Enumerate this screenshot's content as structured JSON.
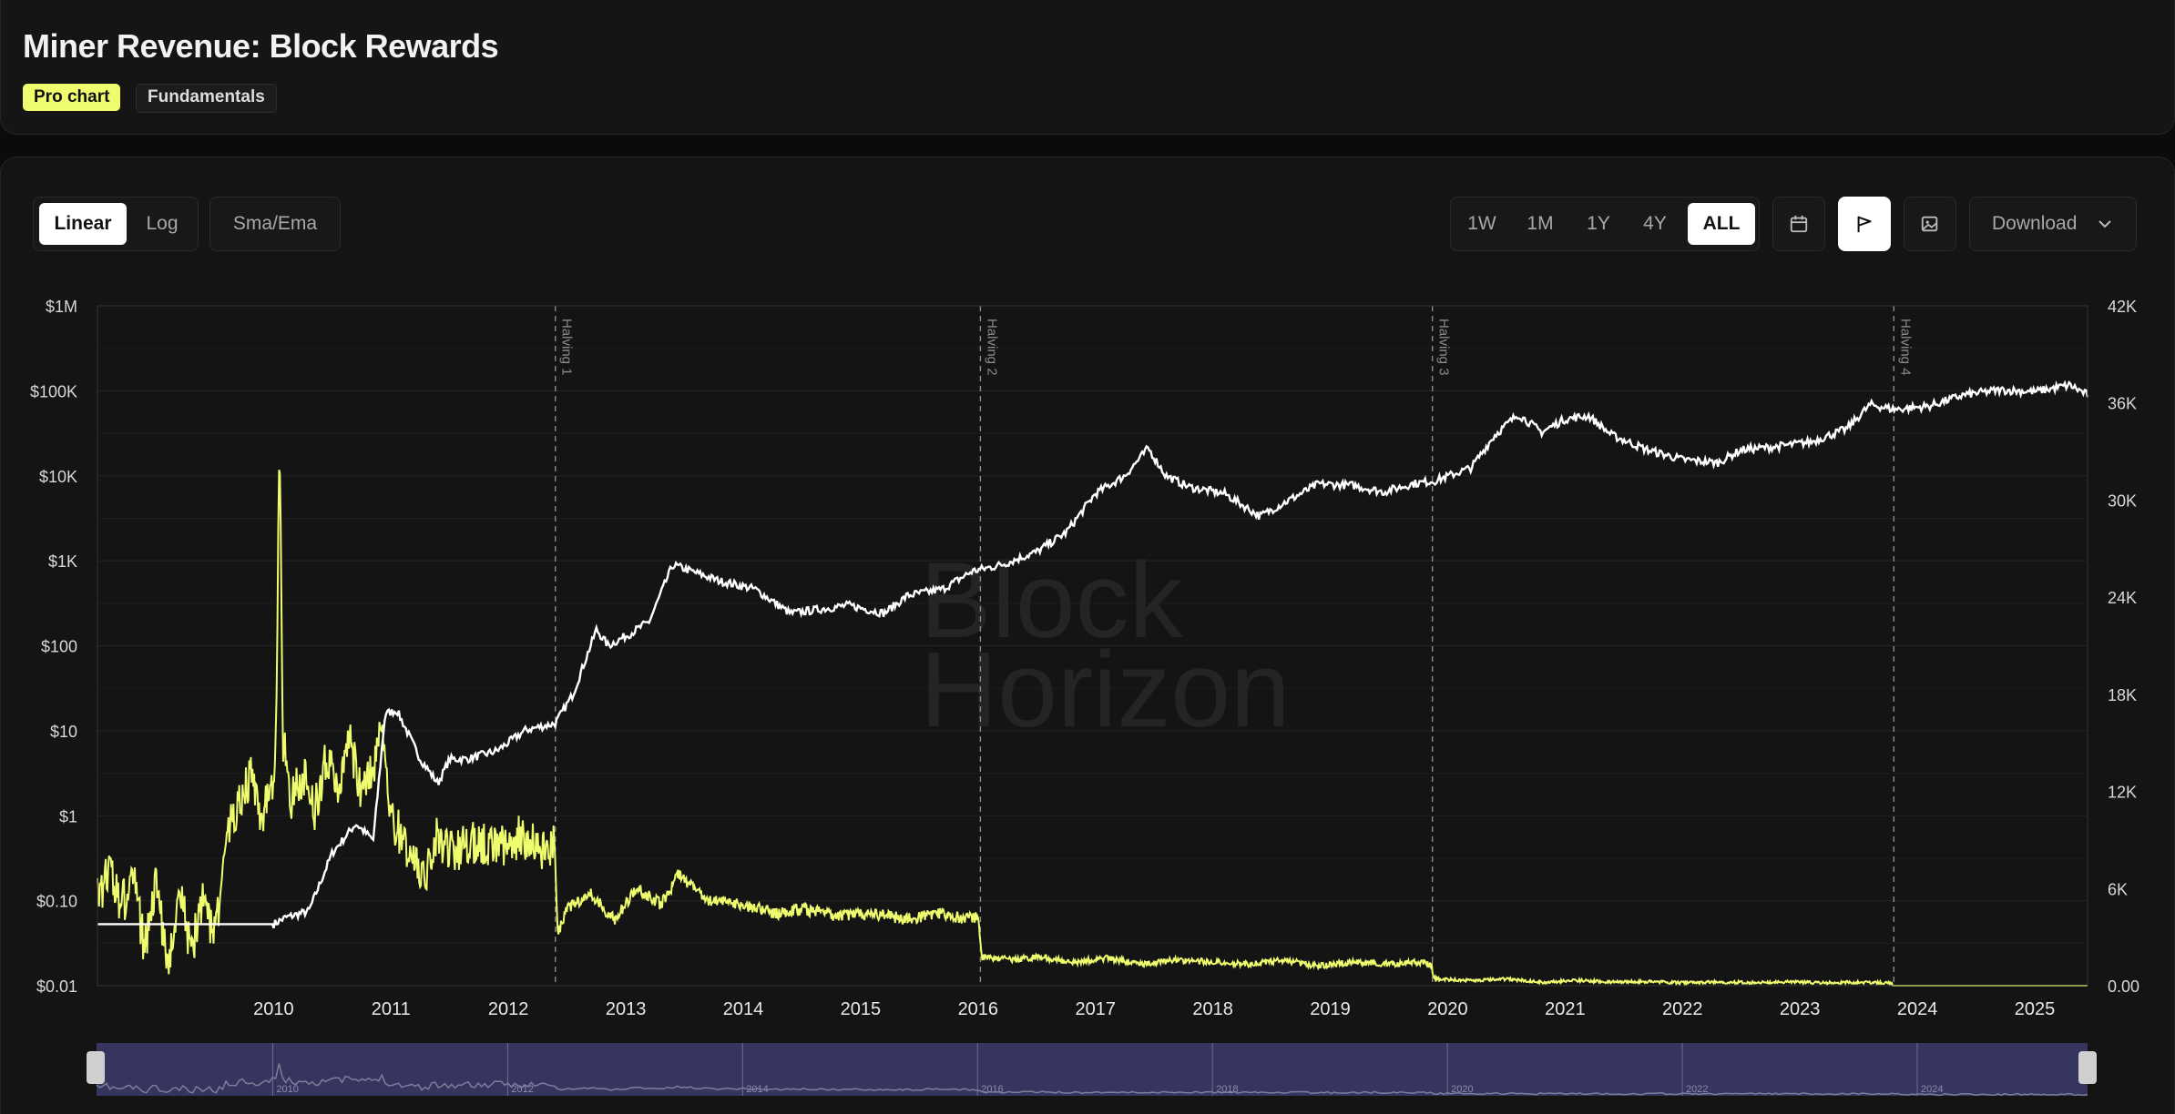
{
  "header": {
    "title": "Miner Revenue: Block Rewards",
    "tags": [
      "Pro chart",
      "Fundamentals"
    ]
  },
  "toolbar": {
    "scale_buttons": [
      "Linear",
      "Log"
    ],
    "active_scale": "Linear",
    "sma_label": "Sma/Ema",
    "range_buttons": [
      "1W",
      "1M",
      "1Y",
      "4Y",
      "ALL"
    ],
    "active_range": "ALL",
    "download_label": "Download",
    "icons": [
      "calendar-icon",
      "flag-icon",
      "image-icon",
      "chevron-down-icon"
    ]
  },
  "watermark": {
    "line1": "Block",
    "line2": "Horizon"
  },
  "colors": {
    "revenue": "#eefc6e",
    "block_count": "#ffffff",
    "background": "#141414",
    "navigator": "#3a3a6a"
  },
  "chart_data": {
    "type": "line",
    "x_range": [
      2009.0,
      2025.95
    ],
    "x_ticks": [
      "2010",
      "2011",
      "2012",
      "2013",
      "2014",
      "2015",
      "2016",
      "2017",
      "2018",
      "2019",
      "2020",
      "2021",
      "2022",
      "2023",
      "2024",
      "2025"
    ],
    "y_left": {
      "scale": "log",
      "ticks": [
        "$1M",
        "$100K",
        "$10K",
        "$1K",
        "$100",
        "$10",
        "$1",
        "$0.10",
        "$0.01"
      ],
      "range": [
        0.01,
        1000000
      ]
    },
    "y_right": {
      "scale": "linear",
      "ticks": [
        "42K",
        "36K",
        "30K",
        "24K",
        "18K",
        "12K",
        "6K",
        "0.00"
      ],
      "range": [
        0,
        42000
      ]
    },
    "annotations": [
      {
        "label": "Halving 1",
        "x": 2012.9
      },
      {
        "label": "Halving 2",
        "x": 2016.52
      },
      {
        "label": "Halving 3",
        "x": 2020.37
      },
      {
        "label": "Halving 4",
        "x": 2024.3
      }
    ],
    "series": [
      {
        "axis": "left",
        "x": [
          2009.0,
          2009.1,
          2009.2,
          2009.3,
          2009.4,
          2009.5,
          2009.6,
          2009.7,
          2009.8,
          2009.9,
          2010.0,
          2010.1,
          2010.2,
          2010.3,
          2010.4,
          2010.5,
          2010.52,
          2010.55,
          2010.58,
          2010.65,
          2010.75,
          2010.85,
          2010.95,
          2011.05,
          2011.15,
          2011.25,
          2011.35,
          2011.42,
          2011.5,
          2011.6,
          2011.7,
          2011.8,
          2011.9,
          2012.0,
          2012.2,
          2012.4,
          2012.6,
          2012.8,
          2012.89,
          2012.92,
          2013.0,
          2013.2,
          2013.4,
          2013.6,
          2013.8,
          2013.95,
          2014.2,
          2014.5,
          2014.8,
          2015.0,
          2015.3,
          2015.6,
          2015.9,
          2016.0,
          2016.2,
          2016.4,
          2016.5,
          2016.53,
          2016.8,
          2017.0,
          2017.3,
          2017.6,
          2017.9,
          2018.2,
          2018.5,
          2018.8,
          2019.1,
          2019.4,
          2019.7,
          2020.0,
          2020.3,
          2020.36,
          2020.39,
          2020.7,
          2021.0,
          2021.3,
          2021.6,
          2021.9,
          2022.2,
          2022.5,
          2022.8,
          2023.1,
          2023.4,
          2023.7,
          2024.0,
          2024.28,
          2024.31,
          2024.6,
          2024.9,
          2025.2,
          2025.5,
          2025.95
        ],
        "values": [
          0.1,
          0.25,
          0.08,
          0.2,
          0.03,
          0.15,
          0.02,
          0.12,
          0.025,
          0.1,
          0.04,
          0.5,
          1.5,
          3.0,
          1.0,
          2.5,
          6.0,
          30000,
          8.0,
          1.5,
          3.0,
          1.2,
          5.0,
          2.0,
          8.0,
          1.5,
          4.0,
          12.0,
          1.0,
          0.5,
          0.3,
          0.2,
          0.6,
          0.35,
          0.5,
          0.45,
          0.55,
          0.4,
          0.5,
          0.04,
          0.08,
          0.12,
          0.06,
          0.14,
          0.09,
          0.2,
          0.1,
          0.09,
          0.07,
          0.08,
          0.065,
          0.07,
          0.06,
          0.065,
          0.07,
          0.06,
          0.065,
          0.022,
          0.02,
          0.022,
          0.019,
          0.021,
          0.018,
          0.02,
          0.019,
          0.018,
          0.02,
          0.017,
          0.019,
          0.018,
          0.019,
          0.017,
          0.012,
          0.0115,
          0.012,
          0.011,
          0.0115,
          0.011,
          0.0112,
          0.0108,
          0.011,
          0.0109,
          0.0111,
          0.0108,
          0.011,
          0.0108,
          0.0085,
          0.0084,
          0.0085,
          0.0083,
          0.0084,
          0.0083
        ]
      },
      {
        "axis": "right",
        "x": [
          2009.0,
          2009.6,
          2010.0,
          2010.5,
          2010.6,
          2010.8,
          2011.0,
          2011.2,
          2011.35,
          2011.45,
          2011.55,
          2011.75,
          2011.9,
          2012.0,
          2012.15,
          2012.4,
          2012.65,
          2012.9,
          2013.05,
          2013.25,
          2013.35,
          2013.55,
          2013.7,
          2013.9,
          2014.1,
          2014.3,
          2014.6,
          2014.9,
          2015.1,
          2015.4,
          2015.7,
          2015.9,
          2016.2,
          2016.45,
          2016.7,
          2017.0,
          2017.25,
          2017.5,
          2017.75,
          2017.95,
          2018.1,
          2018.3,
          2018.6,
          2018.9,
          2019.0,
          2019.2,
          2019.4,
          2019.7,
          2019.95,
          2020.2,
          2020.4,
          2020.7,
          2020.9,
          2021.1,
          2021.3,
          2021.5,
          2021.7,
          2021.9,
          2022.2,
          2022.5,
          2022.8,
          2023.0,
          2023.3,
          2023.6,
          2023.9,
          2024.1,
          2024.3,
          2024.6,
          2024.9,
          2025.2,
          2025.5,
          2025.8,
          2025.95
        ],
        "values": [
          3800,
          3800,
          3800,
          3800,
          4200,
          4600,
          8200,
          10000,
          9000,
          16800,
          17000,
          14000,
          12500,
          14000,
          14000,
          14500,
          15800,
          16200,
          18000,
          22000,
          21000,
          21800,
          22500,
          26000,
          25500,
          25000,
          24500,
          23000,
          23200,
          23500,
          23000,
          24100,
          24500,
          25600,
          26000,
          26800,
          28000,
          30400,
          31500,
          33200,
          31500,
          30800,
          30400,
          29000,
          29400,
          30200,
          31000,
          30900,
          30500,
          31000,
          31200,
          32000,
          34000,
          35300,
          34200,
          35000,
          35200,
          34000,
          33100,
          32500,
          32300,
          33100,
          33300,
          33600,
          34400,
          35900,
          35600,
          35800,
          36500,
          36800,
          36700,
          37100,
          36500
        ]
      }
    ]
  }
}
